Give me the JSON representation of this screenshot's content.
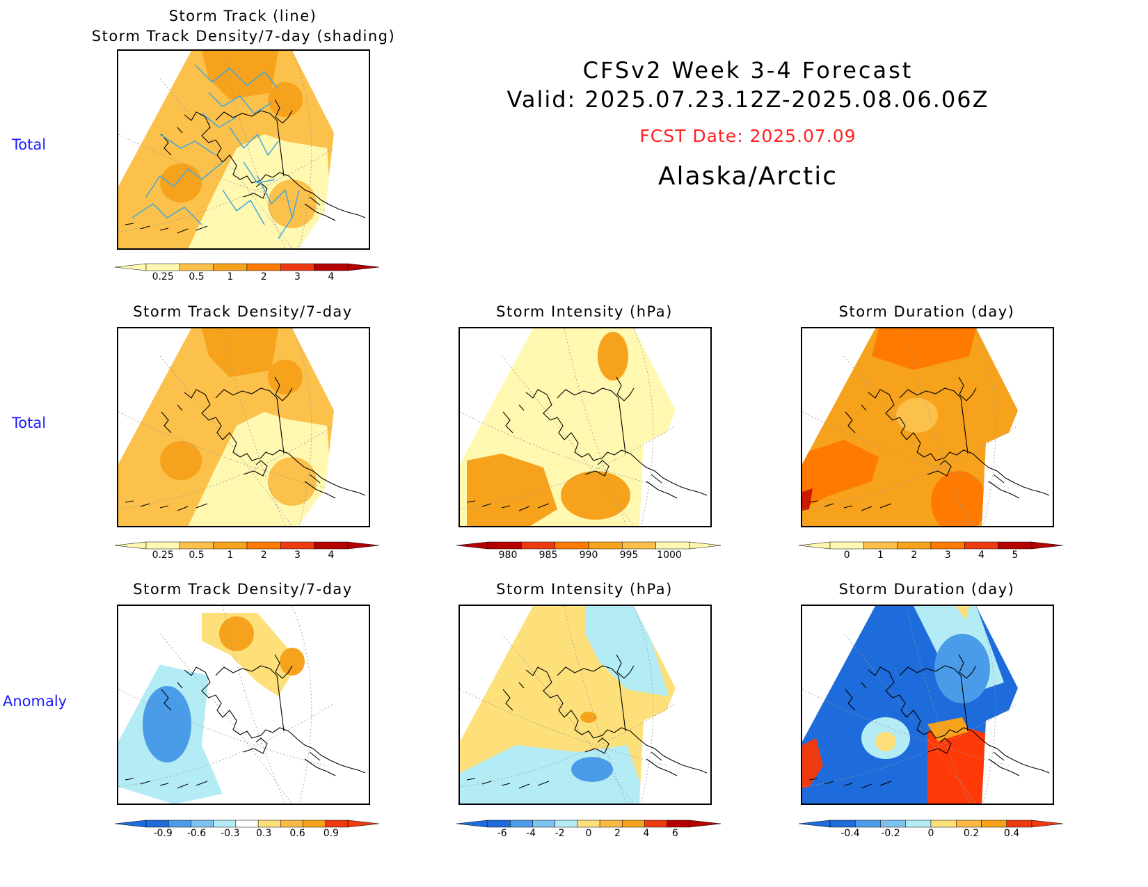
{
  "header": {
    "line1": "CFSv2 Week 3-4 Forecast",
    "line2": "Valid: 2025.07.23.12Z-2025.08.06.06Z",
    "fcst_date": "FCST Date: 2025.07.09",
    "region": "Alaska/Arctic",
    "fcst_color": "#ff2020"
  },
  "row_labels": {
    "row1": "Total",
    "row2": "Total",
    "row3": "Anomaly"
  },
  "panels": {
    "track": {
      "title1": "Storm Track (line)",
      "title2": "Storm Track Density/7-day (shading)"
    },
    "density_total": {
      "title": "Storm Track Density/7-day"
    },
    "intensity_total": {
      "title": "Storm Intensity (hPa)"
    },
    "duration_total": {
      "title": "Storm Duration (day)"
    },
    "density_anom": {
      "title": "Storm Track Density/7-day"
    },
    "intensity_anom": {
      "title": "Storm Intensity (hPa)"
    },
    "duration_anom": {
      "title": "Storm Duration (day)"
    }
  },
  "colorbars": {
    "density": {
      "ticks": [
        "0.25",
        "0.5",
        "1",
        "2",
        "3",
        "4"
      ],
      "colors": [
        "#fff8b0",
        "#fcc14a",
        "#f6a21c",
        "#ff7a00",
        "#ee3a10",
        "#b40000"
      ]
    },
    "intensity": {
      "ticks": [
        "980",
        "985",
        "990",
        "995",
        "1000"
      ],
      "colors": [
        "#b40000",
        "#ee3a10",
        "#ff7a00",
        "#f6a21c",
        "#fcc14a",
        "#fff8b0"
      ]
    },
    "duration": {
      "ticks": [
        "0",
        "1",
        "2",
        "3",
        "4",
        "5"
      ],
      "colors": [
        "#fff8b0",
        "#fcc14a",
        "#f6a21c",
        "#ff7a00",
        "#ee3a10",
        "#b40000"
      ]
    },
    "density_anom": {
      "ticks": [
        "-0.9",
        "-0.6",
        "-0.3",
        "0.3",
        "0.6",
        "0.9"
      ],
      "colors": [
        "#1e6bdc",
        "#4a9be8",
        "#7ec1f0",
        "#b4ecf6",
        "#ffffff",
        "#fde07a",
        "#fbb944",
        "#f6a21c",
        "#ee3a10"
      ]
    },
    "intensity_anom": {
      "ticks": [
        "-6",
        "-4",
        "-2",
        "0",
        "2",
        "4",
        "6"
      ],
      "colors": [
        "#1e6bdc",
        "#4a9be8",
        "#7ec1f0",
        "#b4ecf6",
        "#fde07a",
        "#fbb944",
        "#f6a21c",
        "#ee3a10",
        "#b40000"
      ]
    },
    "duration_anom": {
      "ticks": [
        "-0.4",
        "-0.2",
        "0",
        "0.2",
        "0.4"
      ],
      "colors": [
        "#1e6bdc",
        "#4a9be8",
        "#7ec1f0",
        "#b4ecf6",
        "#fde07a",
        "#fbb944",
        "#f6a21c",
        "#ee3a10"
      ]
    }
  }
}
